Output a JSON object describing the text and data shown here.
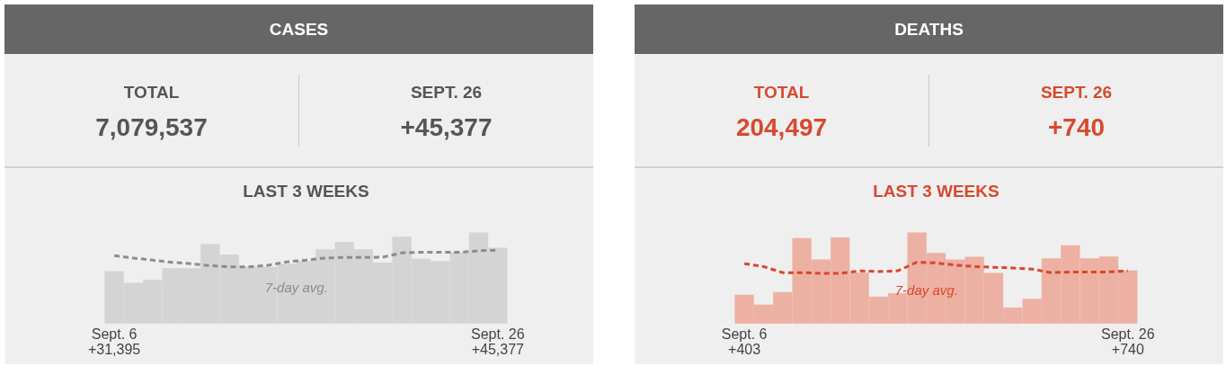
{
  "chart_data": [
    {
      "type": "bar",
      "title": "CASES",
      "annotations": [
        "TOTAL",
        "7,079,537",
        "SEPT. 26",
        "+45,377"
      ],
      "subtitle": "LAST 3 WEEKS",
      "legend": false,
      "tick_labels": "x",
      "categories": [
        "Sept. 6",
        null,
        null,
        null,
        null,
        null,
        null,
        null,
        null,
        null,
        null,
        null,
        null,
        null,
        null,
        null,
        null,
        null,
        null,
        null,
        "Sept. 26"
      ],
      "series": [
        {
          "color": "#d4d4d4",
          "values": [
            31395,
            24400,
            26200,
            33200,
            33200,
            47600,
            41400,
            34000,
            34000,
            35800,
            37500,
            44500,
            48900,
            44500,
            36600,
            52000,
            38900,
            37500,
            42700,
            54600,
            45377
          ],
          "value_labels": [
            "+31,395",
            null,
            null,
            null,
            null,
            null,
            null,
            null,
            null,
            null,
            null,
            null,
            null,
            null,
            null,
            null,
            null,
            null,
            null,
            null,
            "+45,377"
          ]
        },
        {
          "type": "line",
          "name": "7-day avg.",
          "color": "#8c8c8c",
          "line_style": "dashed",
          "values": [
            40700,
            39300,
            38000,
            36700,
            35900,
            34700,
            34000,
            34000,
            34900,
            37000,
            38000,
            39300,
            39600,
            39600,
            39800,
            42400,
            42700,
            42700,
            42700,
            43600,
            44000
          ]
        }
      ]
    },
    {
      "type": "bar",
      "title": "DEATHS",
      "annotations": [
        "TOTAL",
        "204,497",
        "SEPT. 26",
        "+740"
      ],
      "subtitle": "LAST 3 WEEKS",
      "legend": false,
      "tick_labels": "x",
      "categories": [
        "Sept. 6",
        null,
        null,
        null,
        null,
        null,
        null,
        null,
        null,
        null,
        null,
        null,
        null,
        null,
        null,
        null,
        null,
        null,
        null,
        null,
        "Sept. 26"
      ],
      "series": [
        {
          "color": "#edb1a3",
          "values": [
            403,
            265,
            440,
            1190,
            895,
            1200,
            710,
            375,
            425,
            1270,
            985,
            895,
            930,
            705,
            225,
            345,
            910,
            1090,
            910,
            935,
            740
          ],
          "value_labels": [
            "+403",
            null,
            null,
            null,
            null,
            null,
            null,
            null,
            null,
            null,
            null,
            null,
            null,
            null,
            null,
            null,
            null,
            null,
            null,
            null,
            "+740"
          ]
        },
        {
          "type": "line",
          "name": "7-day avg.",
          "color": "#d9472b",
          "line_style": "dashed",
          "values": [
            835,
            795,
            710,
            710,
            700,
            700,
            735,
            725,
            735,
            855,
            845,
            815,
            795,
            785,
            775,
            760,
            710,
            720,
            720,
            720,
            735
          ]
        }
      ]
    }
  ]
}
